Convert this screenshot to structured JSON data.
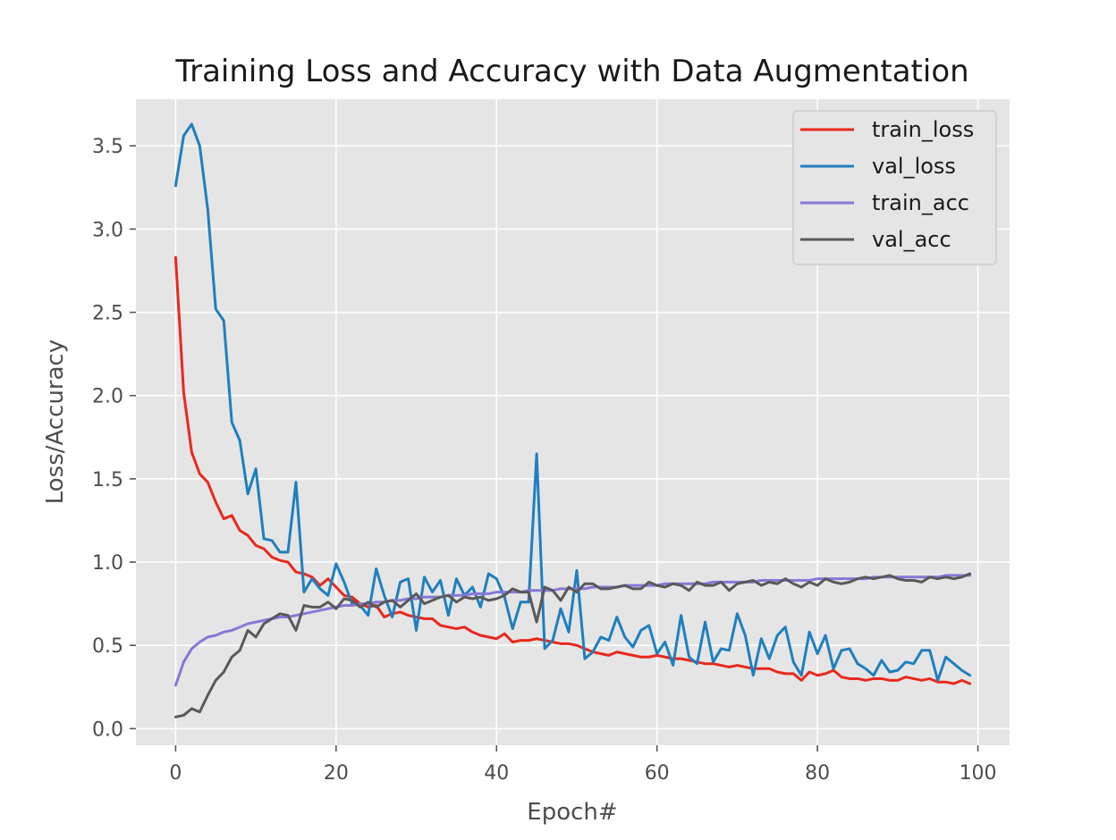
{
  "chart_data": {
    "type": "line",
    "title": "Training Loss and Accuracy with Data Augmentation",
    "xlabel": "Epoch#",
    "ylabel": "Loss/Accuracy",
    "xlim": [
      -4.95,
      103.95
    ],
    "ylim": [
      -0.1,
      3.78
    ],
    "xticks": [
      0,
      20,
      40,
      60,
      80,
      100
    ],
    "yticks": [
      0.0,
      0.5,
      1.0,
      1.5,
      2.0,
      2.5,
      3.0,
      3.5
    ],
    "ytick_labels": [
      "0.0",
      "0.5",
      "1.0",
      "1.5",
      "2.0",
      "2.5",
      "3.0",
      "3.5"
    ],
    "grid": true,
    "background": "#e5e5e5",
    "legend_position": "top-right",
    "x": [
      0,
      1,
      2,
      3,
      4,
      5,
      6,
      7,
      8,
      9,
      10,
      11,
      12,
      13,
      14,
      15,
      16,
      17,
      18,
      19,
      20,
      21,
      22,
      23,
      24,
      25,
      26,
      27,
      28,
      29,
      30,
      31,
      32,
      33,
      34,
      35,
      36,
      37,
      38,
      39,
      40,
      41,
      42,
      43,
      44,
      45,
      46,
      47,
      48,
      49,
      50,
      51,
      52,
      53,
      54,
      55,
      56,
      57,
      58,
      59,
      60,
      61,
      62,
      63,
      64,
      65,
      66,
      67,
      68,
      69,
      70,
      71,
      72,
      73,
      74,
      75,
      76,
      77,
      78,
      79,
      80,
      81,
      82,
      83,
      84,
      85,
      86,
      87,
      88,
      89,
      90,
      91,
      92,
      93,
      94,
      95,
      96,
      97,
      98,
      99
    ],
    "series": [
      {
        "name": "train_loss",
        "color": "#e8291c",
        "values": [
          2.83,
          2.02,
          1.66,
          1.53,
          1.48,
          1.36,
          1.26,
          1.28,
          1.19,
          1.16,
          1.1,
          1.08,
          1.03,
          1.01,
          1.0,
          0.94,
          0.93,
          0.91,
          0.86,
          0.9,
          0.85,
          0.8,
          0.79,
          0.75,
          0.73,
          0.74,
          0.67,
          0.69,
          0.7,
          0.68,
          0.67,
          0.66,
          0.66,
          0.62,
          0.61,
          0.6,
          0.61,
          0.58,
          0.56,
          0.55,
          0.54,
          0.57,
          0.52,
          0.53,
          0.53,
          0.54,
          0.53,
          0.52,
          0.51,
          0.51,
          0.5,
          0.48,
          0.46,
          0.45,
          0.44,
          0.46,
          0.45,
          0.44,
          0.43,
          0.43,
          0.44,
          0.43,
          0.42,
          0.42,
          0.41,
          0.4,
          0.39,
          0.39,
          0.38,
          0.37,
          0.38,
          0.37,
          0.36,
          0.36,
          0.36,
          0.34,
          0.33,
          0.33,
          0.29,
          0.34,
          0.32,
          0.33,
          0.35,
          0.31,
          0.3,
          0.3,
          0.29,
          0.3,
          0.3,
          0.29,
          0.29,
          0.31,
          0.3,
          0.29,
          0.3,
          0.28,
          0.28,
          0.27,
          0.29,
          0.27
        ]
      },
      {
        "name": "val_loss",
        "color": "#1f7fbf",
        "values": [
          3.26,
          3.56,
          3.63,
          3.5,
          3.12,
          2.52,
          2.45,
          1.84,
          1.73,
          1.41,
          1.56,
          1.14,
          1.13,
          1.06,
          1.06,
          1.48,
          0.82,
          0.9,
          0.84,
          0.8,
          0.99,
          0.88,
          0.75,
          0.74,
          0.68,
          0.96,
          0.8,
          0.67,
          0.88,
          0.9,
          0.59,
          0.91,
          0.82,
          0.89,
          0.68,
          0.9,
          0.8,
          0.85,
          0.73,
          0.93,
          0.9,
          0.79,
          0.6,
          0.76,
          0.76,
          1.65,
          0.48,
          0.53,
          0.72,
          0.58,
          0.95,
          0.42,
          0.46,
          0.55,
          0.53,
          0.67,
          0.55,
          0.49,
          0.59,
          0.62,
          0.45,
          0.52,
          0.38,
          0.68,
          0.43,
          0.39,
          0.64,
          0.4,
          0.48,
          0.47,
          0.69,
          0.56,
          0.32,
          0.54,
          0.42,
          0.56,
          0.61,
          0.4,
          0.32,
          0.58,
          0.45,
          0.56,
          0.36,
          0.47,
          0.48,
          0.39,
          0.36,
          0.32,
          0.41,
          0.34,
          0.35,
          0.4,
          0.39,
          0.47,
          0.47,
          0.29,
          0.43,
          0.39,
          0.35,
          0.32
        ]
      },
      {
        "name": "train_acc",
        "color": "#8777d9",
        "values": [
          0.26,
          0.4,
          0.48,
          0.52,
          0.55,
          0.56,
          0.58,
          0.59,
          0.61,
          0.63,
          0.64,
          0.65,
          0.66,
          0.67,
          0.67,
          0.68,
          0.69,
          0.7,
          0.71,
          0.72,
          0.73,
          0.74,
          0.74,
          0.75,
          0.75,
          0.76,
          0.76,
          0.77,
          0.77,
          0.78,
          0.78,
          0.79,
          0.79,
          0.79,
          0.8,
          0.8,
          0.8,
          0.81,
          0.81,
          0.81,
          0.82,
          0.82,
          0.82,
          0.82,
          0.83,
          0.83,
          0.83,
          0.83,
          0.84,
          0.84,
          0.84,
          0.84,
          0.85,
          0.85,
          0.85,
          0.85,
          0.86,
          0.86,
          0.86,
          0.86,
          0.86,
          0.87,
          0.87,
          0.87,
          0.87,
          0.87,
          0.87,
          0.88,
          0.88,
          0.88,
          0.88,
          0.88,
          0.88,
          0.89,
          0.89,
          0.89,
          0.89,
          0.89,
          0.89,
          0.89,
          0.9,
          0.9,
          0.9,
          0.9,
          0.9,
          0.9,
          0.9,
          0.91,
          0.91,
          0.91,
          0.91,
          0.91,
          0.91,
          0.91,
          0.91,
          0.91,
          0.92,
          0.92,
          0.92,
          0.92
        ]
      },
      {
        "name": "val_acc",
        "color": "#595959",
        "values": [
          0.07,
          0.08,
          0.12,
          0.1,
          0.2,
          0.29,
          0.34,
          0.43,
          0.47,
          0.59,
          0.55,
          0.63,
          0.66,
          0.69,
          0.68,
          0.59,
          0.74,
          0.73,
          0.73,
          0.76,
          0.72,
          0.78,
          0.77,
          0.73,
          0.76,
          0.73,
          0.76,
          0.77,
          0.73,
          0.77,
          0.81,
          0.75,
          0.77,
          0.79,
          0.8,
          0.76,
          0.79,
          0.78,
          0.79,
          0.77,
          0.78,
          0.8,
          0.84,
          0.82,
          0.82,
          0.64,
          0.85,
          0.83,
          0.77,
          0.85,
          0.82,
          0.87,
          0.87,
          0.84,
          0.84,
          0.85,
          0.86,
          0.84,
          0.84,
          0.88,
          0.86,
          0.85,
          0.87,
          0.86,
          0.83,
          0.88,
          0.86,
          0.86,
          0.88,
          0.83,
          0.87,
          0.88,
          0.89,
          0.86,
          0.88,
          0.87,
          0.9,
          0.87,
          0.85,
          0.88,
          0.86,
          0.9,
          0.88,
          0.87,
          0.88,
          0.9,
          0.91,
          0.9,
          0.91,
          0.92,
          0.9,
          0.89,
          0.89,
          0.88,
          0.91,
          0.9,
          0.91,
          0.9,
          0.91,
          0.93
        ]
      }
    ]
  }
}
